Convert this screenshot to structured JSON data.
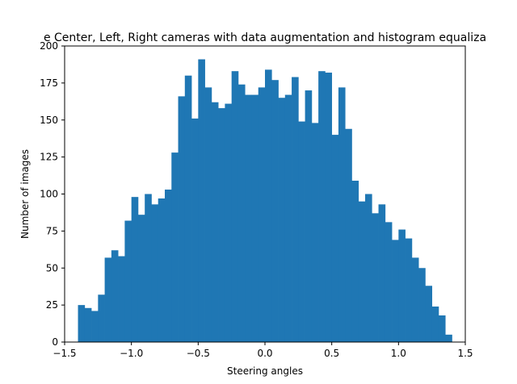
{
  "chart_data": {
    "type": "bar",
    "title": "e Center, Left, Right cameras with data augmentation and histogram equaliza",
    "xlabel": "Steering angles",
    "ylabel": "Number of images",
    "xlim": [
      -1.5,
      1.5
    ],
    "ylim": [
      0,
      200
    ],
    "xticks": [
      "−1.5",
      "−1.0",
      "−0.5",
      "0.0",
      "0.5",
      "1.0",
      "1.5"
    ],
    "xtick_values": [
      -1.5,
      -1.0,
      -0.5,
      0.0,
      0.5,
      1.0,
      1.5
    ],
    "yticks": [
      "0",
      "25",
      "50",
      "75",
      "100",
      "125",
      "150",
      "175",
      "200"
    ],
    "ytick_values": [
      0,
      25,
      50,
      75,
      100,
      125,
      150,
      175,
      200
    ],
    "grid": false,
    "bin_range": [
      -1.4,
      1.4
    ],
    "values": [
      25,
      23,
      21,
      32,
      57,
      62,
      58,
      82,
      98,
      86,
      100,
      93,
      97,
      103,
      128,
      166,
      180,
      151,
      191,
      172,
      162,
      158,
      161,
      183,
      174,
      167,
      167,
      172,
      184,
      177,
      165,
      167,
      179,
      149,
      170,
      148,
      183,
      182,
      140,
      172,
      144,
      109,
      95,
      100,
      87,
      93,
      81,
      69,
      76,
      70,
      57,
      50,
      38,
      24,
      18,
      5
    ],
    "color": "#1f77b4"
  }
}
